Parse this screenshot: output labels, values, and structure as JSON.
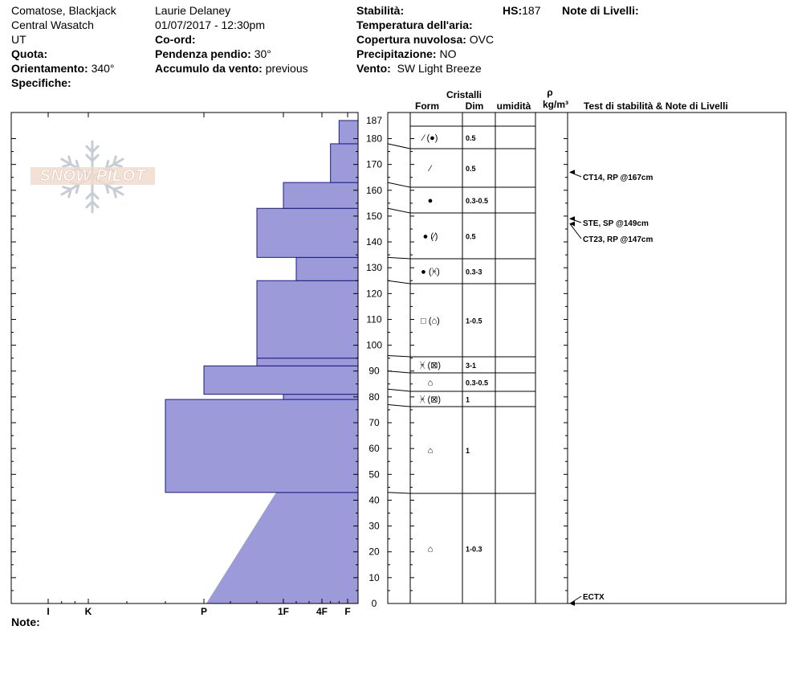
{
  "header": {
    "location": "Comatose, Blackjack",
    "region": "Central Wasatch",
    "state": "UT",
    "quota_label": "Quota:",
    "orientamento_label": "Orientamento:",
    "orientamento_value": "340°",
    "specifiche_label": "Specifiche:",
    "observer": "Laurie Delaney",
    "datetime": "01/07/2017 - 12:30pm",
    "coord_label": "Co-ord:",
    "pendenza_label": "Pendenza pendio:",
    "pendenza_value": "30°",
    "accumulo_label": "Accumulo da vento:",
    "accumulo_value": "previous",
    "stabilita_label": "Stabilità:",
    "temperatura_label": "Temperatura dell'aria:",
    "copertura_label": "Copertura nuvolosa:",
    "copertura_value": "OVC",
    "precipitazione_label": "Precipitazione:",
    "precipitazione_value": "NO",
    "vento_label": "Vento:",
    "vento_value": "SW Light Breeze",
    "hs_label": "HS:",
    "hs_value": "187",
    "note_livelli_label": "Note di Livelli:"
  },
  "logo": {
    "text": "SNOW PILOT"
  },
  "footer": {
    "note_label": "Note:"
  },
  "colors": {
    "hardness_fill": "#9c9ad8",
    "hardness_stroke": "#1a1a8c",
    "logo_snowflake": "#c7cdd6"
  },
  "chart_data": {
    "type": "snow-profile",
    "hardness_axis": {
      "labels": [
        "I",
        "K",
        "P",
        "1F",
        "4F",
        "F"
      ],
      "direction": "right-to-left (F softest at right, I hardest at left)"
    },
    "height_axis": {
      "unit": "cm",
      "range": [
        0,
        187
      ],
      "ticks": [
        "0",
        "10",
        "20",
        "30",
        "40",
        "50",
        "60",
        "70",
        "80",
        "90",
        "100",
        "110",
        "120",
        "130",
        "140",
        "150",
        "160",
        "170",
        "180",
        "187"
      ]
    },
    "column_headers": {
      "cristalli": "Cristalli",
      "form": "Form",
      "dim": "Dim",
      "umidita": "umidità",
      "rho": "ρ",
      "rho_unit": "kg/m³",
      "tests": "Test di stabilità & Note di Livelli"
    },
    "hardness_layers": [
      {
        "bottom": 0,
        "top": 43,
        "hardness_bottom": "P-",
        "hardness_top": "1F-",
        "shape": "taper"
      },
      {
        "bottom": 43,
        "top": 79,
        "hardness": "P+"
      },
      {
        "bottom": 79,
        "top": 81,
        "hardness": "1F"
      },
      {
        "bottom": 81,
        "top": 92,
        "hardness": "P"
      },
      {
        "bottom": 92,
        "top": 95,
        "hardness": "1F+"
      },
      {
        "bottom": 95,
        "top": 125,
        "hardness": "1F+"
      },
      {
        "bottom": 125,
        "top": 134,
        "hardness": "1F-"
      },
      {
        "bottom": 134,
        "top": 153,
        "hardness": "1F+"
      },
      {
        "bottom": 153,
        "top": 163,
        "hardness": "1F"
      },
      {
        "bottom": 163,
        "top": 178,
        "hardness": "4F-"
      },
      {
        "bottom": 178,
        "top": 187,
        "hardness": "F+"
      }
    ],
    "layer_boundaries": [
      0,
      43,
      77,
      83,
      90,
      96,
      125,
      134,
      153,
      163,
      178,
      187
    ],
    "layers": [
      {
        "bottom": 178,
        "top": 187,
        "form": "⁄ (●)",
        "dim": "0.5"
      },
      {
        "bottom": 163,
        "top": 178,
        "form": "⁄",
        "dim": "0.5"
      },
      {
        "bottom": 153,
        "top": 163,
        "form": "●",
        "dim": "0.3-0.5"
      },
      {
        "bottom": 134,
        "top": 153,
        "form": "● (⁄)",
        "dim": "0.5"
      },
      {
        "bottom": 125,
        "top": 134,
        "form": "● (ᚸ)",
        "dim": "0.3-3"
      },
      {
        "bottom": 96,
        "top": 125,
        "form": "□ (⌂)",
        "dim": "1-0.5"
      },
      {
        "bottom": 90,
        "top": 96,
        "form": "ᚸ (⊠)",
        "dim": "3-1"
      },
      {
        "bottom": 83,
        "top": 90,
        "form": "⌂",
        "dim": "0.3-0.5"
      },
      {
        "bottom": 77,
        "top": 83,
        "form": "ᚸ (⊠)",
        "dim": "1"
      },
      {
        "bottom": 43,
        "top": 77,
        "form": "⌂",
        "dim": "1"
      },
      {
        "bottom": 0,
        "top": 43,
        "form": "⌂",
        "dim": "1-0.3"
      }
    ],
    "stability_tests": [
      {
        "height": 167,
        "text": "CT14, RP @167cm"
      },
      {
        "height": 149,
        "text": "STE, SP @149cm"
      },
      {
        "height": 147,
        "text": "CT23, RP @147cm"
      },
      {
        "height": 0,
        "text": "ECTX"
      }
    ]
  }
}
